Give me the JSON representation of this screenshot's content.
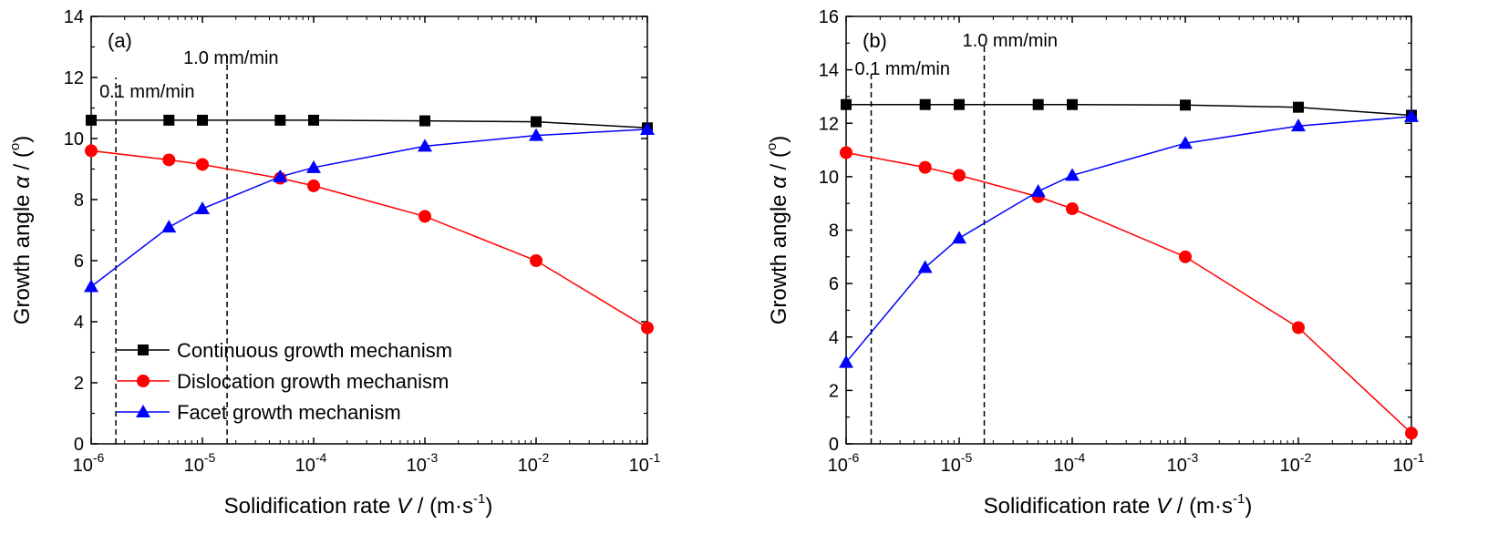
{
  "chart_data": [
    {
      "type": "line",
      "panel_label": "(a)",
      "xlabel": {
        "main": "Solidification rate ",
        "var": "V",
        "unit": " / (m·s",
        "exp": "-1",
        "close": ")"
      },
      "ylabel": {
        "main": "Growth angle ",
        "var": "α",
        "unit": " / (",
        "exp": "o",
        "close": ")"
      },
      "xscale": "log",
      "xlim": [
        1e-06,
        0.1
      ],
      "ylim": [
        0,
        14
      ],
      "x_ticks": [
        {
          "base": "10",
          "exp": "-6",
          "value": 1e-06
        },
        {
          "base": "10",
          "exp": "-5",
          "value": 1e-05
        },
        {
          "base": "10",
          "exp": "-4",
          "value": 0.0001
        },
        {
          "base": "10",
          "exp": "-3",
          "value": 0.001
        },
        {
          "base": "10",
          "exp": "-2",
          "value": 0.01
        },
        {
          "base": "10",
          "exp": "-1",
          "value": 0.1
        }
      ],
      "y_ticks": [
        0,
        2,
        4,
        6,
        8,
        10,
        12,
        14
      ],
      "vlines": [
        {
          "x": 1.667e-06,
          "y_max": 12,
          "label": "0.1 mm/min"
        },
        {
          "x": 1.667e-05,
          "y_max": 12.8,
          "label": "1.0 mm/min"
        }
      ],
      "legend_position": "bottom-left",
      "series": [
        {
          "name": "Continuous growth mechanism",
          "color": "#000000",
          "marker": "square",
          "x": [
            1e-06,
            5e-06,
            1e-05,
            5e-05,
            0.0001,
            0.001,
            0.01,
            0.1
          ],
          "y": [
            10.6,
            10.6,
            10.6,
            10.6,
            10.6,
            10.58,
            10.55,
            10.35
          ]
        },
        {
          "name": "Dislocation growth mechanism",
          "color": "#ff0000",
          "marker": "circle",
          "x": [
            1e-06,
            5e-06,
            1e-05,
            5e-05,
            0.0001,
            0.001,
            0.01,
            0.1
          ],
          "y": [
            9.6,
            9.3,
            9.15,
            8.7,
            8.45,
            7.45,
            6.0,
            3.8
          ]
        },
        {
          "name": "Facet growth mechanism",
          "color": "#0000ff",
          "marker": "triangle",
          "x": [
            1e-06,
            5e-06,
            1e-05,
            5e-05,
            0.0001,
            0.001,
            0.01,
            0.1
          ],
          "y": [
            5.15,
            7.1,
            7.7,
            8.75,
            9.05,
            9.75,
            10.1,
            10.3
          ]
        }
      ]
    },
    {
      "type": "line",
      "panel_label": "(b)",
      "xlabel": {
        "main": "Solidification rate ",
        "var": "V",
        "unit": " / (m·s",
        "exp": "-1",
        "close": ")"
      },
      "ylabel": {
        "main": "Growth angle ",
        "var": "α",
        "unit": " / (",
        "exp": "o",
        "close": ")"
      },
      "xscale": "log",
      "xlim": [
        1e-06,
        0.1
      ],
      "ylim": [
        0,
        16
      ],
      "x_ticks": [
        {
          "base": "10",
          "exp": "-6",
          "value": 1e-06
        },
        {
          "base": "10",
          "exp": "-5",
          "value": 1e-05
        },
        {
          "base": "10",
          "exp": "-4",
          "value": 0.0001
        },
        {
          "base": "10",
          "exp": "-3",
          "value": 0.001
        },
        {
          "base": "10",
          "exp": "-2",
          "value": 0.01
        },
        {
          "base": "10",
          "exp": "-1",
          "value": 0.1
        }
      ],
      "y_ticks": [
        0,
        2,
        4,
        6,
        8,
        10,
        12,
        14,
        16
      ],
      "vlines": [
        {
          "x": 1.667e-06,
          "y_max": 13.9,
          "label": "0.1 mm/min"
        },
        {
          "x": 1.667e-05,
          "y_max": 14.9,
          "label": "1.0 mm/min"
        }
      ],
      "series": [
        {
          "name": "Continuous growth mechanism",
          "color": "#000000",
          "marker": "square",
          "x": [
            1e-06,
            5e-06,
            1e-05,
            5e-05,
            0.0001,
            0.001,
            0.01,
            0.1
          ],
          "y": [
            12.7,
            12.7,
            12.7,
            12.7,
            12.7,
            12.68,
            12.6,
            12.3
          ]
        },
        {
          "name": "Dislocation growth mechanism",
          "color": "#ff0000",
          "marker": "circle",
          "x": [
            1e-06,
            5e-06,
            1e-05,
            5e-05,
            0.0001,
            0.001,
            0.01,
            0.1
          ],
          "y": [
            10.9,
            10.35,
            10.05,
            9.25,
            8.8,
            7.0,
            4.35,
            0.4
          ]
        },
        {
          "name": "Facet growth mechanism",
          "color": "#0000ff",
          "marker": "triangle",
          "x": [
            1e-06,
            5e-06,
            1e-05,
            5e-05,
            0.0001,
            0.001,
            0.01,
            0.1
          ],
          "y": [
            3.05,
            6.6,
            7.7,
            9.45,
            10.05,
            11.25,
            11.9,
            12.25
          ]
        }
      ]
    }
  ]
}
